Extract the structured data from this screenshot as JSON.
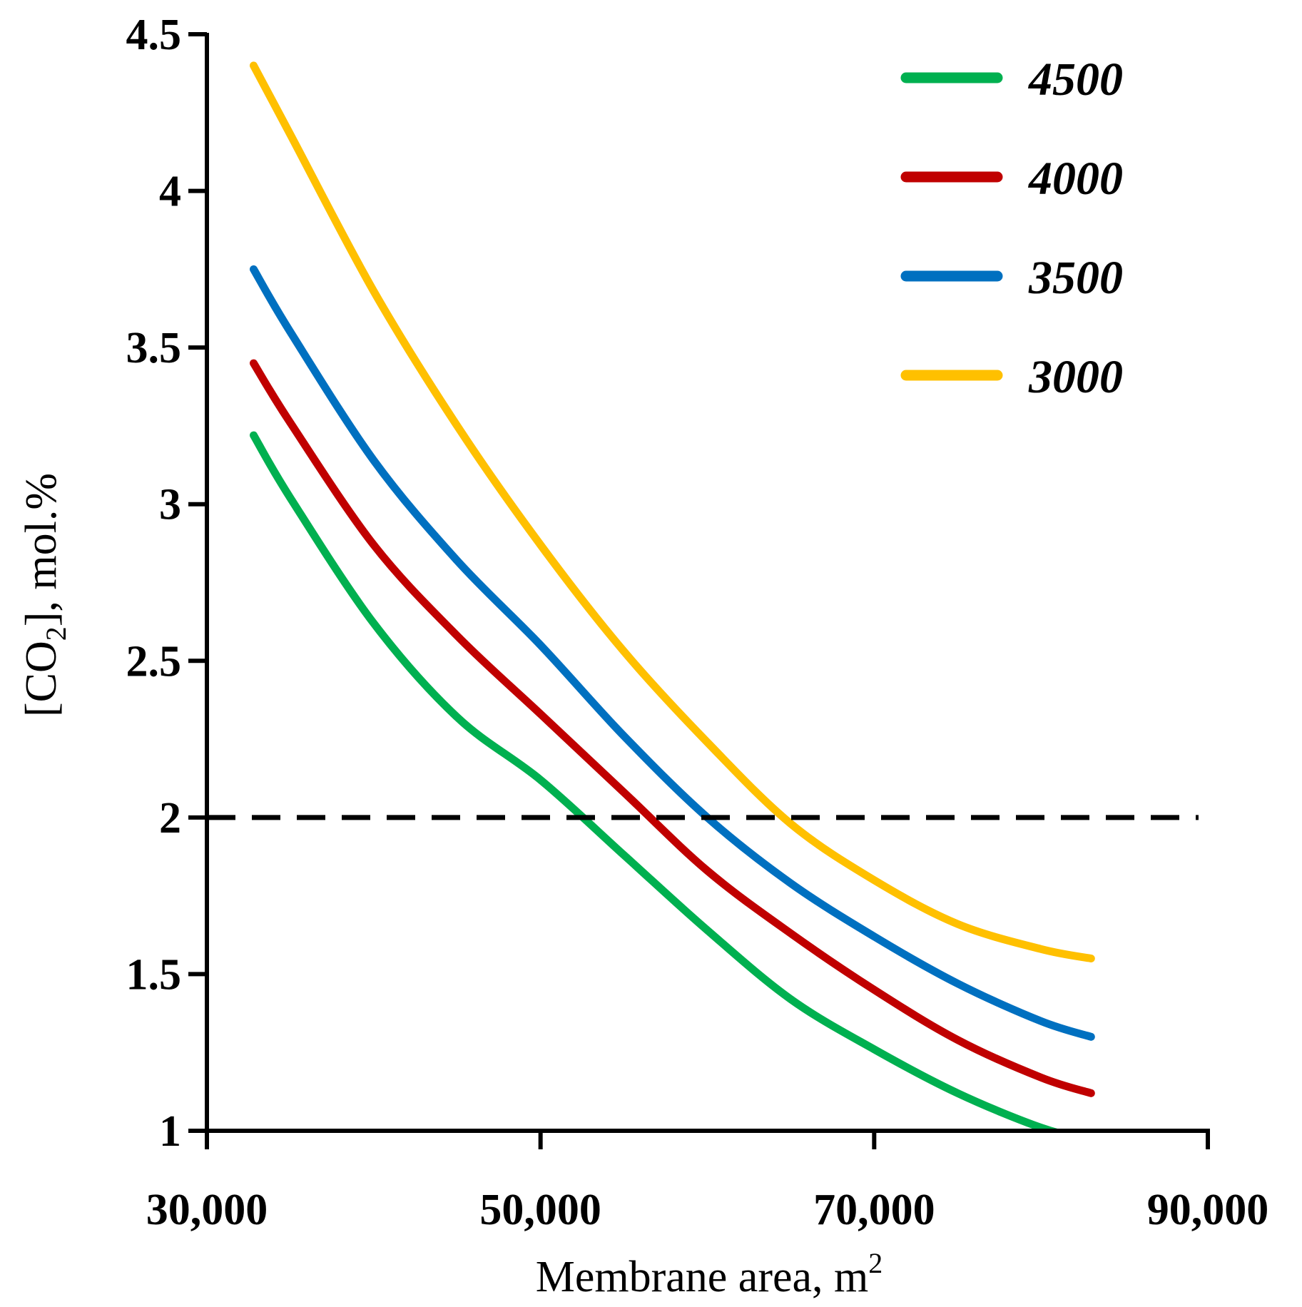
{
  "chart_data": {
    "type": "line",
    "xlabel": "Membrane area, m",
    "xlabel_sup": "2",
    "ylabel_main": "[CO",
    "ylabel_sub": "2",
    "ylabel_tail": "], mol.%",
    "xlim": [
      30000,
      90000
    ],
    "ylim": [
      1,
      4.5
    ],
    "x_ticks": [
      30000,
      50000,
      70000,
      90000
    ],
    "x_tick_labels": [
      "30,000",
      "50,000",
      "70,000",
      "90,000"
    ],
    "y_ticks": [
      1,
      1.5,
      2,
      2.5,
      3,
      3.5,
      4,
      4.5
    ],
    "y_tick_labels": [
      "1",
      "1.5",
      "2",
      "2.5",
      "3",
      "3.5",
      "4",
      "4.5"
    ],
    "grid": false,
    "legend_position": "top-right",
    "reference_line": {
      "y": 2,
      "style": "dashed",
      "color": "#000000"
    },
    "x": [
      32800,
      35000,
      40000,
      45000,
      50000,
      55000,
      60000,
      65000,
      70000,
      75000,
      80000,
      83000
    ],
    "series": [
      {
        "name": "4500",
        "color": "#00b050",
        "values": [
          3.22,
          3.02,
          2.62,
          2.32,
          2.12,
          1.88,
          1.64,
          1.42,
          1.26,
          1.12,
          1.01,
          0.97
        ]
      },
      {
        "name": "4000",
        "color": "#c00000",
        "values": [
          3.45,
          3.26,
          2.87,
          2.58,
          2.33,
          2.08,
          1.83,
          1.63,
          1.45,
          1.29,
          1.17,
          1.12
        ]
      },
      {
        "name": "3500",
        "color": "#0070c0",
        "values": [
          3.75,
          3.55,
          3.14,
          2.82,
          2.55,
          2.26,
          2.0,
          1.79,
          1.62,
          1.47,
          1.35,
          1.3
        ]
      },
      {
        "name": "3000",
        "color": "#ffc000",
        "values": [
          4.4,
          4.18,
          3.68,
          3.25,
          2.87,
          2.53,
          2.24,
          1.98,
          1.8,
          1.66,
          1.58,
          1.55
        ]
      }
    ]
  }
}
